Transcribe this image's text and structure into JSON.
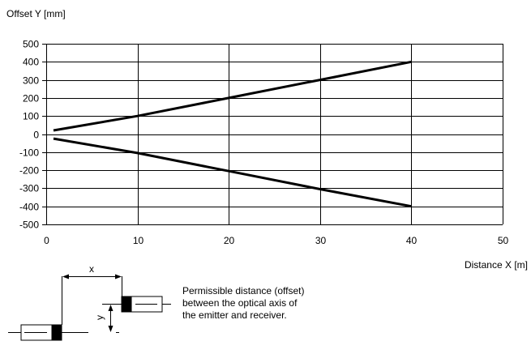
{
  "chart_data": {
    "type": "line",
    "title": "",
    "ylabel": "Offset Y [mm]",
    "xlabel": "Distance X [m]",
    "xlim": [
      0,
      50
    ],
    "ylim": [
      -500,
      500
    ],
    "x_ticks": [
      "0",
      "10",
      "20",
      "30",
      "40",
      "50"
    ],
    "y_ticks": [
      "500",
      "400",
      "300",
      "200",
      "100",
      "0",
      "-100",
      "-200",
      "-300",
      "-400",
      "-500"
    ],
    "grid": true,
    "legend": "none",
    "series": [
      {
        "points": [
          [
            0.8,
            20
          ],
          [
            10,
            100
          ],
          [
            20,
            200
          ],
          [
            30,
            300
          ],
          [
            40,
            400
          ]
        ]
      },
      {
        "points": [
          [
            0.8,
            -25
          ],
          [
            10,
            -105
          ],
          [
            20,
            -205
          ],
          [
            30,
            -305
          ],
          [
            40,
            -400
          ]
        ]
      }
    ]
  },
  "diagram": {
    "x_label": "x",
    "y_label": "y",
    "caption_lines": [
      "Permissible distance (offset)",
      "between the optical axis of",
      "the emitter and receiver."
    ]
  },
  "colors": {
    "line": "#000000",
    "grid": "#000000",
    "background": "#ffffff"
  }
}
